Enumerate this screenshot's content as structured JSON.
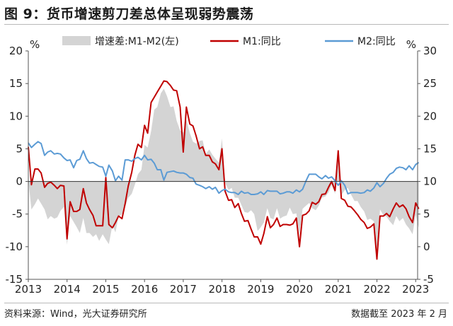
{
  "title": "图 9：货币增速剪刀差总体呈现弱势震荡",
  "source": "资料来源：Wind，光大证券研究所",
  "note": "数据截至 2023 年 2 月",
  "chart_data": {
    "type": "line",
    "title": "",
    "x_ticks": [
      "2013",
      "2014",
      "2015",
      "2016",
      "2017",
      "2018",
      "2019",
      "2020",
      "2021",
      "2022",
      "2023"
    ],
    "left_axis": {
      "unit": "%",
      "ylim": [
        -15,
        20
      ],
      "ticks": [
        20,
        15,
        10,
        5,
        0,
        -5,
        -10,
        -15
      ]
    },
    "right_axis": {
      "unit": "%",
      "ylim": [
        -5,
        30
      ],
      "ticks": [
        30,
        25,
        20,
        15,
        10,
        5,
        0,
        -5
      ]
    },
    "legend": {
      "placement": "top"
    },
    "grid": false,
    "series": [
      {
        "name": "增速差:M1-M2(左)",
        "type": "area",
        "axis": "left",
        "color": "#d4d4d4",
        "x": [
          2013.0,
          2013.08,
          2013.17,
          2013.25,
          2013.33,
          2013.42,
          2013.5,
          2013.58,
          2013.67,
          2013.75,
          2013.83,
          2013.92,
          2014.0,
          2014.08,
          2014.17,
          2014.25,
          2014.33,
          2014.42,
          2014.5,
          2014.58,
          2014.67,
          2014.75,
          2014.83,
          2014.92,
          2015.0,
          2015.08,
          2015.17,
          2015.25,
          2015.33,
          2015.42,
          2015.5,
          2015.58,
          2015.67,
          2015.75,
          2015.83,
          2015.92,
          2016.0,
          2016.08,
          2016.17,
          2016.25,
          2016.33,
          2016.42,
          2016.5,
          2016.58,
          2016.67,
          2016.75,
          2016.83,
          2016.92,
          2017.0,
          2017.08,
          2017.17,
          2017.25,
          2017.33,
          2017.42,
          2017.5,
          2017.58,
          2017.67,
          2017.75,
          2017.83,
          2017.92,
          2018.0,
          2018.08,
          2018.17,
          2018.25,
          2018.33,
          2018.42,
          2018.5,
          2018.58,
          2018.67,
          2018.75,
          2018.83,
          2018.92,
          2019.0,
          2019.08,
          2019.17,
          2019.25,
          2019.33,
          2019.42,
          2019.5,
          2019.58,
          2019.67,
          2019.75,
          2019.83,
          2019.92,
          2020.0,
          2020.08,
          2020.17,
          2020.25,
          2020.33,
          2020.42,
          2020.5,
          2020.58,
          2020.67,
          2020.75,
          2020.83,
          2020.92,
          2021.0,
          2021.08,
          2021.17,
          2021.25,
          2021.33,
          2021.42,
          2021.5,
          2021.58,
          2021.67,
          2021.75,
          2021.83,
          2021.92,
          2022.0,
          2022.08,
          2022.17,
          2022.25,
          2022.33,
          2022.42,
          2022.5,
          2022.58,
          2022.67,
          2022.75,
          2022.83,
          2022.92,
          2023.0,
          2023.08
        ],
        "values": [
          0.2,
          -4.3,
          -3.5,
          -2.6,
          -3.4,
          -4.3,
          -5.8,
          -5.3,
          -5.7,
          -5.5,
          -4.5,
          -3.9,
          -9.7,
          -5.3,
          -6.2,
          -7.0,
          -7.9,
          -5.6,
          -7.9,
          -7.9,
          -8.5,
          -8.1,
          -9.1,
          -8.1,
          -8.9,
          -9.6,
          -6.7,
          -7.8,
          -5.4,
          -5.0,
          -3.9,
          -2.5,
          -1.9,
          -0.5,
          1.1,
          1.8,
          5.6,
          5.2,
          7.7,
          11.0,
          11.4,
          13.5,
          14.2,
          13.1,
          11.4,
          11.5,
          9.3,
          7.8,
          7.5,
          9.5,
          7.4,
          6.1,
          5.8,
          6.2,
          6.3,
          4.2,
          4.9,
          4.1,
          3.5,
          2.9,
          6.6,
          -0.2,
          -1.3,
          -1.0,
          -2.5,
          -2.5,
          -3.6,
          -4.7,
          -4.8,
          -4.4,
          -5.0,
          -7.6,
          -7.0,
          -6.3,
          -4.1,
          -5.6,
          -5.8,
          -4.1,
          -5.7,
          -5.4,
          -5.2,
          -4.0,
          -5.0,
          -4.9,
          -8.3,
          -4.2,
          -3.7,
          -3.3,
          -4.1,
          -4.4,
          -3.7,
          -2.5,
          -2.3,
          -1.7,
          -0.5,
          -1.9,
          4.5,
          -2.1,
          -1.3,
          -1.0,
          -2.0,
          -3.0,
          -3.0,
          -3.9,
          -4.6,
          -5.9,
          -5.7,
          -6.1,
          -11.8,
          -4.3,
          -5.2,
          -5.4,
          -6.1,
          -6.7,
          -5.3,
          -6.1,
          -5.6,
          -6.6,
          -7.2,
          -8.1,
          -5.1,
          -7.1
        ]
      },
      {
        "name": "M1:同比",
        "type": "line",
        "axis": "right",
        "color": "#c00000",
        "width": 2,
        "x": [
          2013.0,
          2013.08,
          2013.17,
          2013.25,
          2013.33,
          2013.42,
          2013.5,
          2013.58,
          2013.67,
          2013.75,
          2013.83,
          2013.92,
          2014.0,
          2014.08,
          2014.17,
          2014.25,
          2014.33,
          2014.42,
          2014.5,
          2014.58,
          2014.67,
          2014.75,
          2014.83,
          2014.92,
          2015.0,
          2015.08,
          2015.17,
          2015.25,
          2015.33,
          2015.42,
          2015.5,
          2015.58,
          2015.67,
          2015.75,
          2015.83,
          2015.92,
          2016.0,
          2016.08,
          2016.17,
          2016.25,
          2016.33,
          2016.42,
          2016.5,
          2016.58,
          2016.67,
          2016.75,
          2016.83,
          2016.92,
          2017.0,
          2017.08,
          2017.17,
          2017.25,
          2017.33,
          2017.42,
          2017.5,
          2017.58,
          2017.67,
          2017.75,
          2017.83,
          2017.92,
          2018.0,
          2018.08,
          2018.17,
          2018.25,
          2018.33,
          2018.42,
          2018.5,
          2018.58,
          2018.67,
          2018.75,
          2018.83,
          2018.92,
          2019.0,
          2019.08,
          2019.17,
          2019.25,
          2019.33,
          2019.42,
          2019.5,
          2019.58,
          2019.67,
          2019.75,
          2019.83,
          2019.92,
          2020.0,
          2020.08,
          2020.17,
          2020.25,
          2020.33,
          2020.42,
          2020.5,
          2020.58,
          2020.67,
          2020.75,
          2020.83,
          2020.92,
          2021.0,
          2021.08,
          2021.17,
          2021.25,
          2021.33,
          2021.42,
          2021.5,
          2021.58,
          2021.67,
          2021.75,
          2021.83,
          2021.92,
          2022.0,
          2022.08,
          2022.17,
          2022.25,
          2022.33,
          2022.42,
          2022.5,
          2022.58,
          2022.67,
          2022.75,
          2022.83,
          2022.92,
          2023.0,
          2023.08
        ],
        "values": [
          15.3,
          9.5,
          11.9,
          11.9,
          11.3,
          9.1,
          9.7,
          9.9,
          9.4,
          8.9,
          9.4,
          9.3,
          1.2,
          6.9,
          5.4,
          5.4,
          5.7,
          8.9,
          6.7,
          5.7,
          4.8,
          3.2,
          3.2,
          3.2,
          10.6,
          3.4,
          2.9,
          3.7,
          4.7,
          4.3,
          6.6,
          9.3,
          11.4,
          14.0,
          15.7,
          15.2,
          18.6,
          17.4,
          22.1,
          22.9,
          23.7,
          24.6,
          25.4,
          25.3,
          24.7,
          24.0,
          23.9,
          21.4,
          14.5,
          21.4,
          18.8,
          18.5,
          17.0,
          15.0,
          15.3,
          14.0,
          14.0,
          13.0,
          12.7,
          11.8,
          15.0,
          8.5,
          7.1,
          7.2,
          6.0,
          6.6,
          5.1,
          3.9,
          4.0,
          2.7,
          1.5,
          1.5,
          0.4,
          2.0,
          4.6,
          2.9,
          3.4,
          4.4,
          3.1,
          3.4,
          3.4,
          3.3,
          3.5,
          4.4,
          0.0,
          4.8,
          5.0,
          5.5,
          6.8,
          6.5,
          6.9,
          8.0,
          8.1,
          9.1,
          10.0,
          8.6,
          14.7,
          7.4,
          7.1,
          6.2,
          6.1,
          5.5,
          4.9,
          4.2,
          3.7,
          2.8,
          3.0,
          3.5,
          -1.9,
          4.7,
          4.7,
          5.1,
          4.6,
          5.8,
          6.7,
          6.1,
          6.4,
          5.8,
          4.6,
          3.7,
          6.7,
          5.8
        ]
      },
      {
        "name": "M2:同比",
        "type": "line",
        "axis": "right",
        "color": "#5b9bd5",
        "width": 2,
        "x": [
          2013.0,
          2013.08,
          2013.17,
          2013.25,
          2013.33,
          2013.42,
          2013.5,
          2013.58,
          2013.67,
          2013.75,
          2013.83,
          2013.92,
          2014.0,
          2014.08,
          2014.17,
          2014.25,
          2014.33,
          2014.42,
          2014.5,
          2014.58,
          2014.67,
          2014.75,
          2014.83,
          2014.92,
          2015.0,
          2015.08,
          2015.17,
          2015.25,
          2015.33,
          2015.42,
          2015.5,
          2015.58,
          2015.67,
          2015.75,
          2015.83,
          2015.92,
          2016.0,
          2016.08,
          2016.17,
          2016.25,
          2016.33,
          2016.42,
          2016.5,
          2016.58,
          2016.67,
          2016.75,
          2016.83,
          2016.92,
          2017.0,
          2017.08,
          2017.17,
          2017.25,
          2017.33,
          2017.42,
          2017.5,
          2017.58,
          2017.67,
          2017.75,
          2017.83,
          2017.92,
          2018.0,
          2018.08,
          2018.17,
          2018.25,
          2018.33,
          2018.42,
          2018.5,
          2018.58,
          2018.67,
          2018.75,
          2018.83,
          2018.92,
          2019.0,
          2019.08,
          2019.17,
          2019.25,
          2019.33,
          2019.42,
          2019.5,
          2019.58,
          2019.67,
          2019.75,
          2019.83,
          2019.92,
          2020.0,
          2020.08,
          2020.17,
          2020.25,
          2020.33,
          2020.42,
          2020.5,
          2020.58,
          2020.67,
          2020.75,
          2020.83,
          2020.92,
          2021.0,
          2021.08,
          2021.17,
          2021.25,
          2021.33,
          2021.42,
          2021.5,
          2021.58,
          2021.67,
          2021.75,
          2021.83,
          2021.92,
          2022.0,
          2022.08,
          2022.17,
          2022.25,
          2022.33,
          2022.42,
          2022.5,
          2022.58,
          2022.67,
          2022.75,
          2022.83,
          2022.92,
          2023.0,
          2023.08
        ],
        "values": [
          15.9,
          15.2,
          15.7,
          16.1,
          15.8,
          14.0,
          14.5,
          14.7,
          14.2,
          14.3,
          14.2,
          13.6,
          13.2,
          13.3,
          12.1,
          13.2,
          13.4,
          14.7,
          13.5,
          12.8,
          12.9,
          12.6,
          12.3,
          12.2,
          10.8,
          12.5,
          11.6,
          10.1,
          10.8,
          10.2,
          13.3,
          13.3,
          13.1,
          13.5,
          13.7,
          13.3,
          14.0,
          13.3,
          13.4,
          12.8,
          11.8,
          11.8,
          10.2,
          11.4,
          11.5,
          11.6,
          11.4,
          11.3,
          11.3,
          11.1,
          10.6,
          10.5,
          9.6,
          9.4,
          9.2,
          8.9,
          9.2,
          8.8,
          9.1,
          8.2,
          8.6,
          8.8,
          8.4,
          8.3,
          8.3,
          8.0,
          8.5,
          8.2,
          8.3,
          8.0,
          8.0,
          8.1,
          8.4,
          8.0,
          8.6,
          8.5,
          8.5,
          8.5,
          8.1,
          8.2,
          8.4,
          8.4,
          8.2,
          8.7,
          8.4,
          8.8,
          10.1,
          11.1,
          11.1,
          11.1,
          10.7,
          10.4,
          10.9,
          10.5,
          10.7,
          10.1,
          9.4,
          10.1,
          9.4,
          8.1,
          8.3,
          8.3,
          8.3,
          8.2,
          8.3,
          8.7,
          8.5,
          9.0,
          9.8,
          9.2,
          9.7,
          10.5,
          11.1,
          11.4,
          12.0,
          12.2,
          12.1,
          11.8,
          12.4,
          11.8,
          12.6,
          12.9
        ]
      }
    ]
  }
}
